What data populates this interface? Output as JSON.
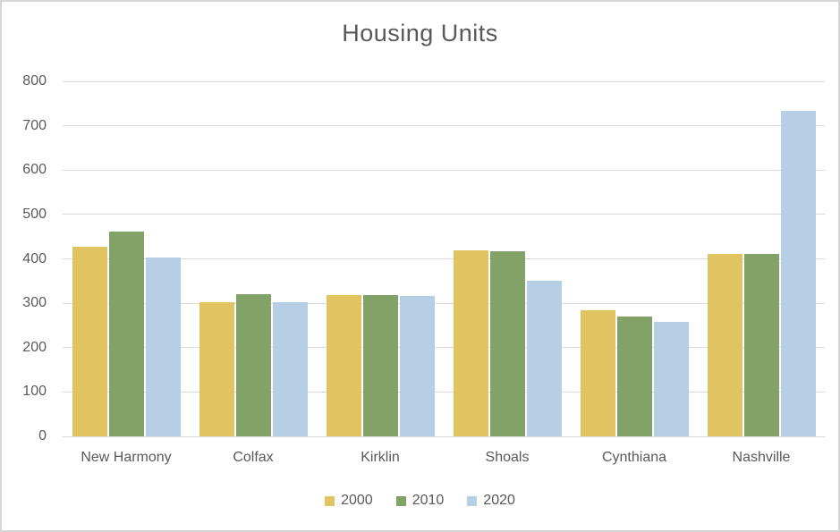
{
  "window": {
    "background_color": "#FFFFFF",
    "border_color": "#D6D6D6"
  },
  "chart_data": {
    "type": "bar",
    "title": "Housing Units",
    "categories": [
      "New Harmony",
      "Colfax",
      "Kirklin",
      "Shoals",
      "Cynthiana",
      "Nashville"
    ],
    "series": [
      {
        "name": "2000",
        "color": "#E0C462",
        "values": [
          427,
          303,
          318,
          420,
          285,
          411
        ]
      },
      {
        "name": "2010",
        "color": "#82A268",
        "values": [
          462,
          320,
          318,
          417,
          271,
          411
        ]
      },
      {
        "name": "2020",
        "color": "#B6CFE5",
        "values": [
          403,
          303,
          316,
          351,
          257,
          733
        ]
      }
    ],
    "xlabel": "",
    "ylabel": "",
    "ylim": [
      0,
      800
    ],
    "yticks": [
      "0",
      "100",
      "200",
      "300",
      "400",
      "500",
      "600",
      "700",
      "800"
    ],
    "grid": true,
    "legend_position": "bottom",
    "text_color": "#595959",
    "gridline_color": "#D9D9D9"
  }
}
